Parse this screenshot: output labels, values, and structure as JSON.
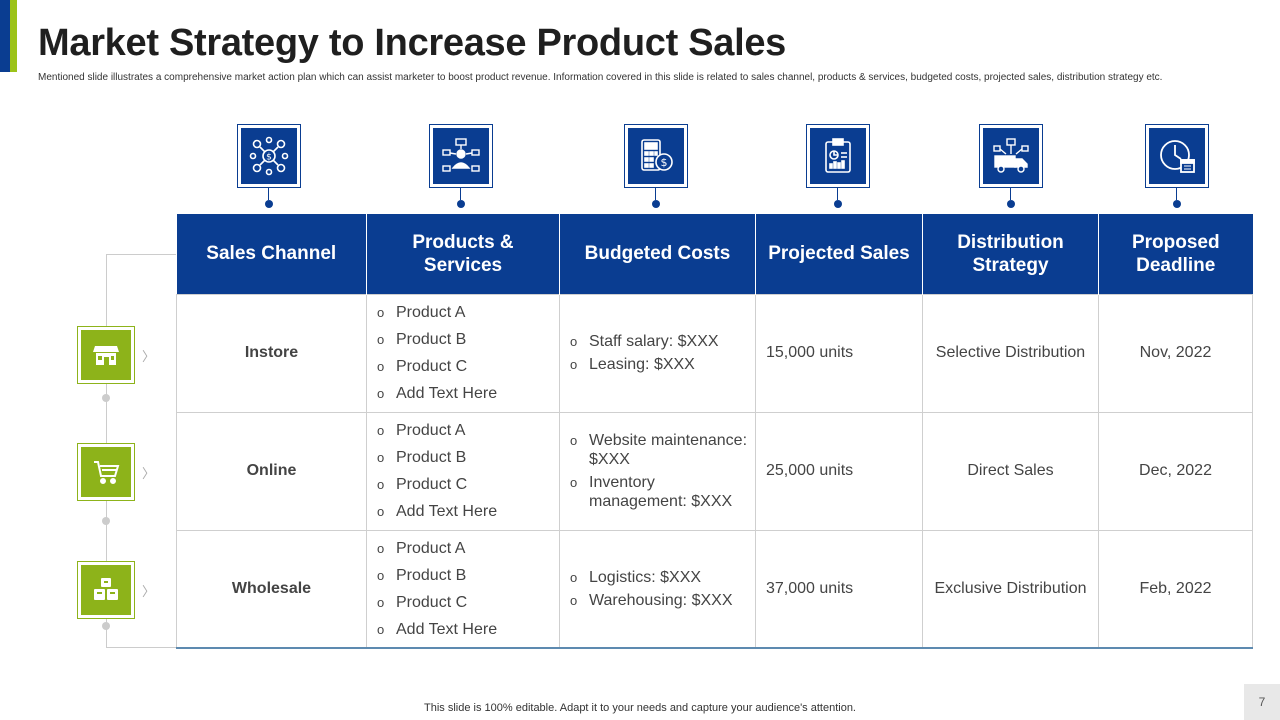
{
  "title": "Market Strategy to Increase Product Sales",
  "subtitle": "Mentioned slide illustrates a comprehensive market action plan  which can assist marketer to boost product revenue. Information covered in this slide is related to sales channel, products & services, budgeted costs, projected sales, distribution strategy etc.",
  "colors": {
    "primary": "#0a3d91",
    "accent": "#8db31a"
  },
  "header_icons": [
    "network-dollar-icon",
    "user-network-icon",
    "calculator-dollar-icon",
    "clipboard-chart-icon",
    "delivery-truck-icon",
    "clock-calendar-icon"
  ],
  "table": {
    "headers": [
      "Sales Channel",
      "Products & Services",
      "Budgeted Costs",
      "Projected Sales",
      "Distribution Strategy",
      "Proposed Deadline"
    ],
    "rows": [
      {
        "icon": "store-icon",
        "channel": "Instore",
        "products": [
          "Product A",
          "Product B",
          "Product C",
          "Add Text Here"
        ],
        "costs": [
          "Staff salary:  $XXX",
          "Leasing: $XXX"
        ],
        "projected": "15,000 units",
        "distribution": "Selective Distribution",
        "deadline": "Nov, 2022"
      },
      {
        "icon": "shopping-cart-icon",
        "channel": "Online",
        "products": [
          "Product A",
          "Product B",
          "Product C",
          "Add Text Here"
        ],
        "costs": [
          "Website maintenance:  $XXX",
          "Inventory management:  $XXX"
        ],
        "projected": "25,000 units",
        "distribution": "Direct Sales",
        "deadline": "Dec, 2022"
      },
      {
        "icon": "boxes-icon",
        "channel": "Wholesale",
        "products": [
          "Product A",
          "Product B",
          "Product C",
          "Add Text Here"
        ],
        "costs": [
          "Logistics: $XXX",
          "Warehousing:  $XXX"
        ],
        "projected": "37,000 units",
        "distribution": "Exclusive Distribution",
        "deadline": "Feb, 2022"
      }
    ]
  },
  "footer": "This slide is 100% editable. Adapt it to your needs and capture your audience's attention.",
  "page_number": "7"
}
